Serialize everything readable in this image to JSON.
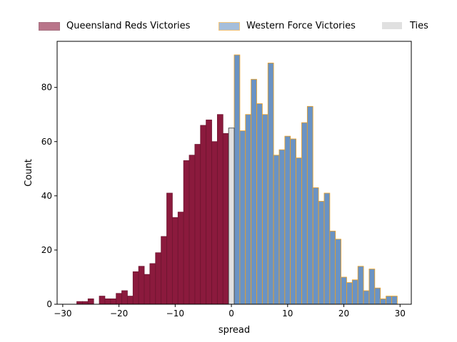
{
  "chart_data": {
    "type": "bar",
    "xlabel": "spread",
    "ylabel": "Count",
    "xlim": [
      -31,
      32
    ],
    "ylim": [
      0,
      97
    ],
    "xticks": [
      -30,
      -20,
      -10,
      0,
      10,
      20,
      30
    ],
    "yticks": [
      0,
      20,
      40,
      60,
      80
    ],
    "legend_position": "top",
    "series": [
      {
        "name": "Queensland Reds Victories",
        "fill": "#8b1a3d",
        "edge": "#6e1530",
        "x": [
          -27,
          -26,
          -25,
          -24,
          -23,
          -22,
          -21,
          -20,
          -19,
          -18,
          -17,
          -16,
          -15,
          -14,
          -13,
          -12,
          -11,
          -10,
          -9,
          -8,
          -7,
          -6,
          -5,
          -4,
          -3,
          -2,
          -1
        ],
        "values": [
          1,
          1,
          2,
          0,
          3,
          2,
          2,
          4,
          5,
          3,
          12,
          14,
          11,
          15,
          19,
          25,
          41,
          32,
          34,
          53,
          55,
          59,
          66,
          68,
          60,
          70,
          63
        ]
      },
      {
        "name": "Western Force Victories",
        "fill": "#6a93c4",
        "edge": "#f0a020",
        "x": [
          1,
          2,
          3,
          4,
          5,
          6,
          7,
          8,
          9,
          10,
          11,
          12,
          13,
          14,
          15,
          16,
          17,
          18,
          19,
          20,
          21,
          22,
          23,
          24,
          25,
          26,
          27,
          28,
          29
        ],
        "values": [
          92,
          64,
          70,
          83,
          74,
          70,
          89,
          55,
          57,
          62,
          61,
          54,
          67,
          73,
          43,
          38,
          41,
          27,
          24,
          10,
          8,
          9,
          14,
          5,
          13,
          6,
          2,
          3,
          3
        ]
      },
      {
        "name": "Ties",
        "fill": "#e0e0e0",
        "edge": "#333333",
        "x": [
          0
        ],
        "values": [
          65
        ]
      }
    ]
  }
}
